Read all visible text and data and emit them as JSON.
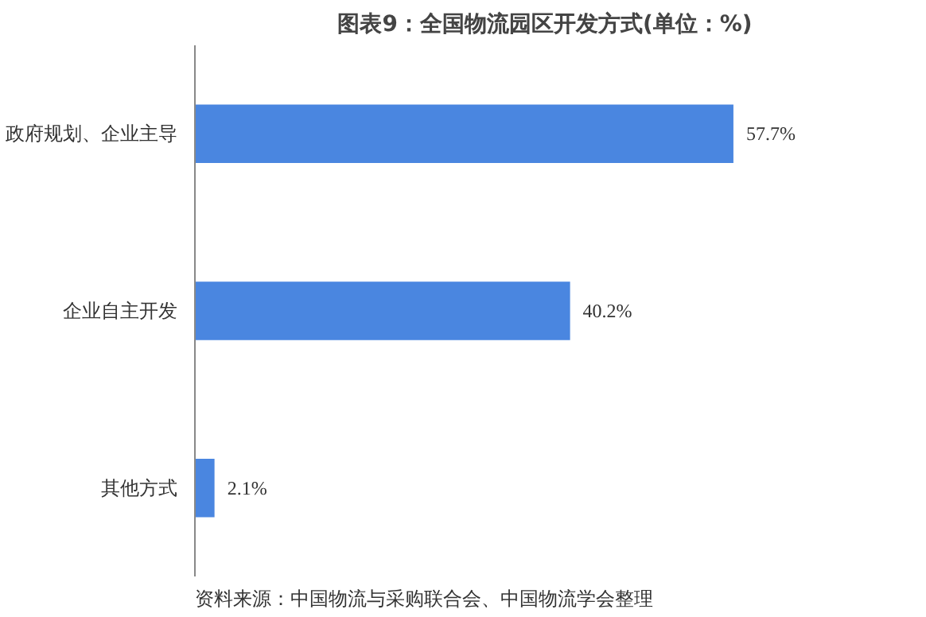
{
  "chart_data": {
    "type": "bar",
    "orientation": "horizontal",
    "title": "图表9：全国物流园区开发方式(单位：%)",
    "categories": [
      "政府规划、企业主导",
      "企业自主开发",
      "其他方式"
    ],
    "values": [
      57.7,
      40.2,
      2.1
    ],
    "color": "#4a86e0",
    "value_labels": [
      "57.7%",
      "40.2%",
      "2.1%"
    ],
    "grid": false,
    "annotations": [
      "资料来源：中国物流与采购联合会、中国物流学会整理"
    ]
  }
}
